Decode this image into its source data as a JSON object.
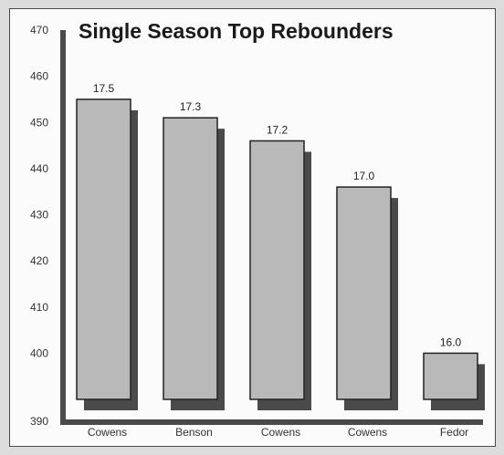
{
  "chart_data": {
    "type": "bar",
    "title": "Single Season Top Rebounders",
    "xlabel": "",
    "ylabel": "",
    "categories": [
      "Cowens",
      "Benson",
      "Cowens",
      "Cowens",
      "Fedor"
    ],
    "values": [
      455,
      451,
      446,
      436,
      400
    ],
    "data_labels": [
      "17.5",
      "17.3",
      "17.2",
      "17.0",
      "16.0"
    ],
    "ylim": [
      390,
      470
    ],
    "yticks": [
      390,
      400,
      410,
      420,
      430,
      440,
      450,
      460,
      470
    ],
    "grid": false,
    "legend": "none",
    "colors": {
      "bar_fill": "#b9b9b9",
      "bar_edge": "#222222",
      "bar_shadow": "#4a4a4a",
      "axis": "#4a4a4a",
      "frame_background": "#fbfbfb",
      "page_background": "#dcdcdc"
    }
  }
}
